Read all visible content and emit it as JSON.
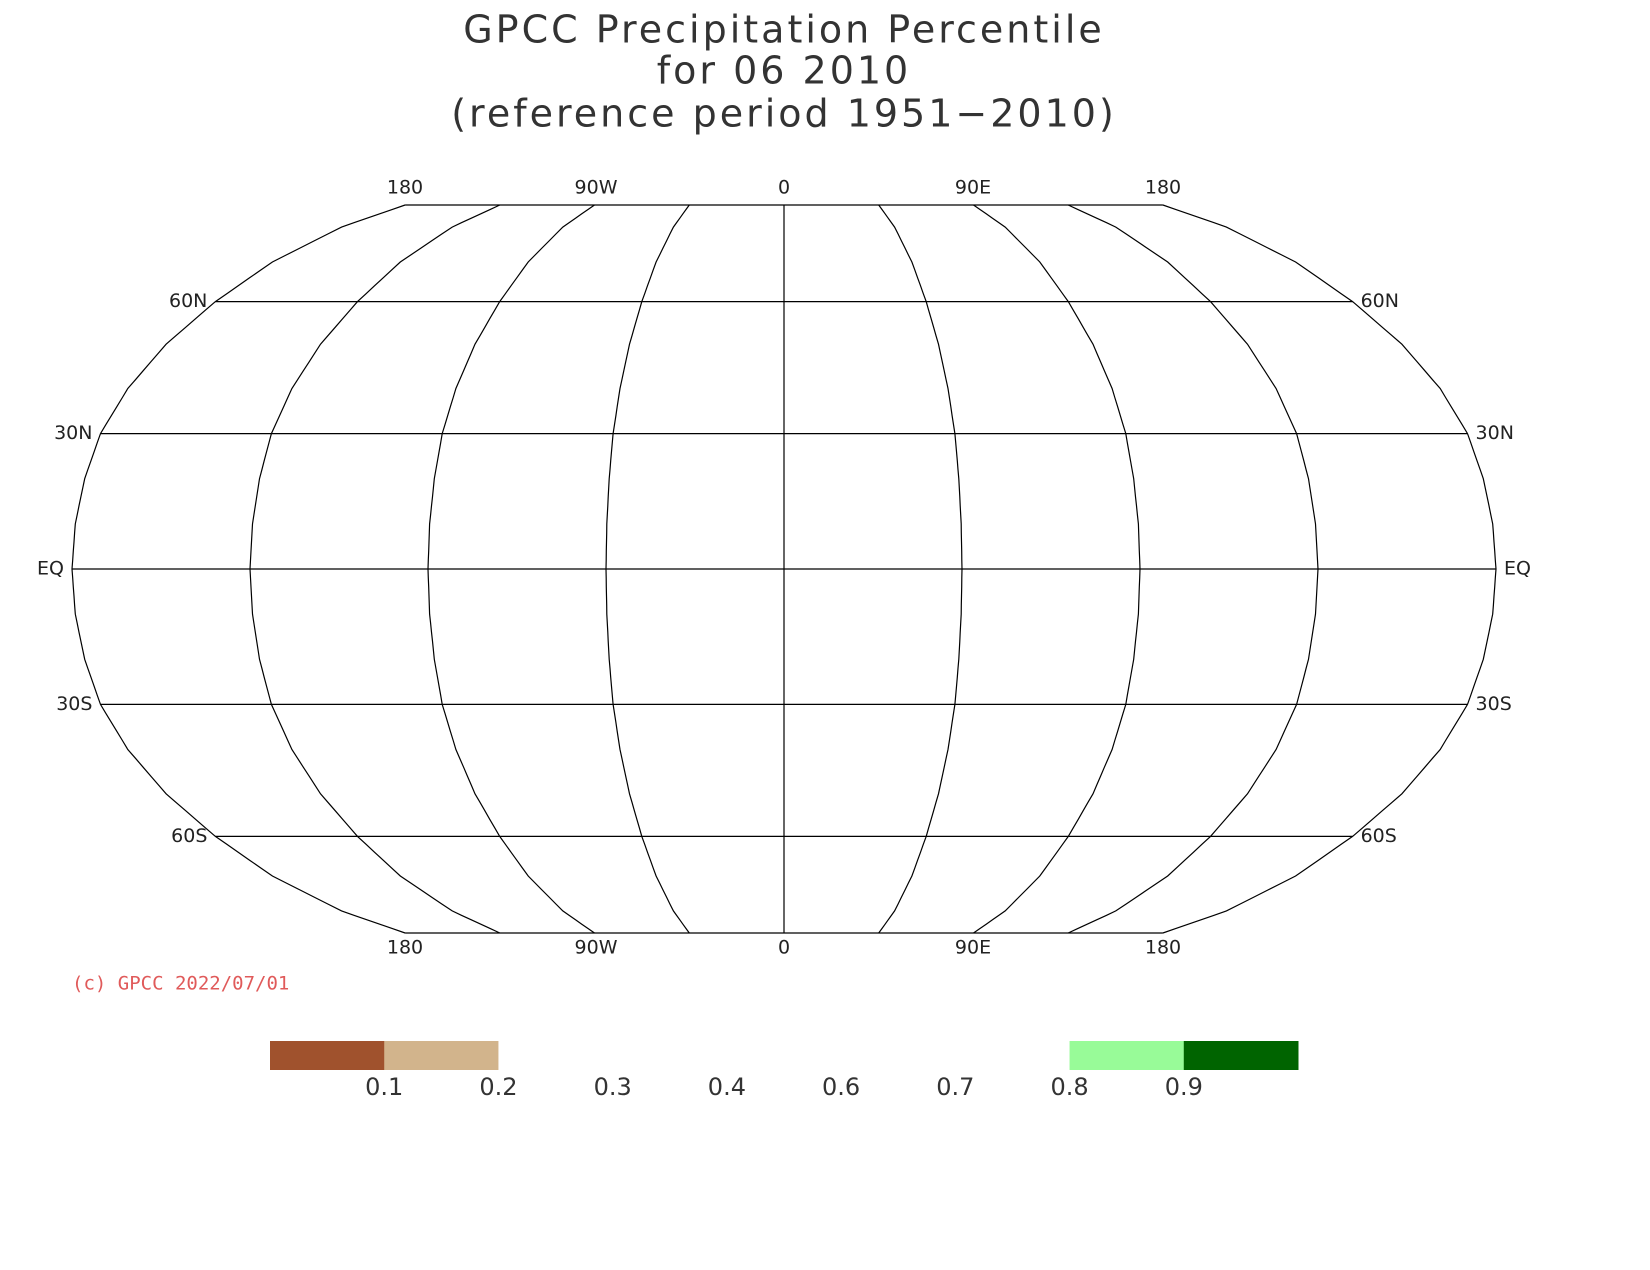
{
  "title": [
    "GPCC Precipitation Percentile",
    "for 06 2010",
    "(reference period 1951−2010)"
  ],
  "map": {
    "top_lon_labels": [
      "180",
      "90W",
      "0",
      "90E",
      "180"
    ],
    "bottom_lon_labels": [
      "180",
      "90W",
      "0",
      "90E",
      "180"
    ],
    "left_lat_labels": [
      "60N",
      "30N",
      "EQ",
      "30S",
      "60S"
    ],
    "right_lat_labels": [
      "60N",
      "30N",
      "EQ",
      "30S",
      "60S"
    ]
  },
  "copyright": "(c) GPCC 2022/07/01",
  "legend": {
    "colors": [
      "#a0522d",
      "#d2b48c",
      "#ffffff",
      "#ffffff",
      "#ffffff",
      "#ffffff",
      "#ffffff",
      "#98fb98",
      "#006400"
    ],
    "ticks": [
      0.1,
      0.2,
      0.3,
      0.4,
      0.6,
      0.7,
      0.8,
      0.9
    ]
  }
}
